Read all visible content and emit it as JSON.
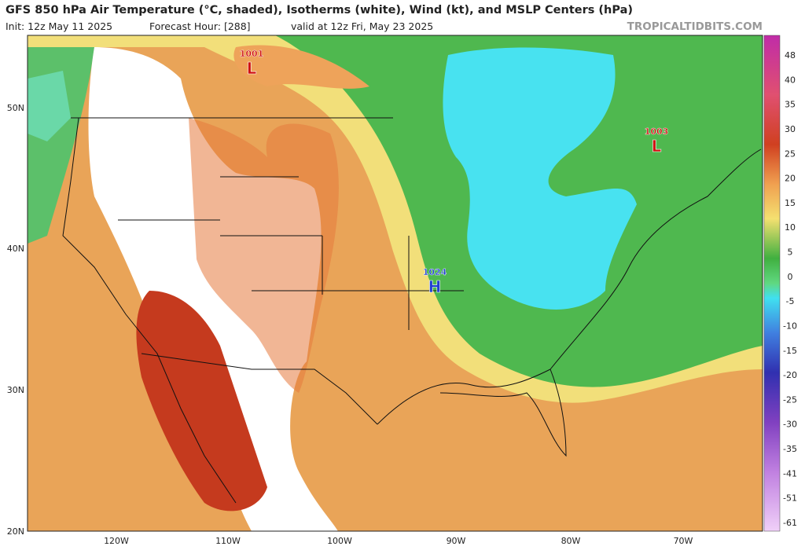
{
  "header": {
    "title": "GFS 850 hPa Air Temperature (°C, shaded), Isotherms (white), Wind (kt), and MSLP Centers (hPa)",
    "init": "Init: 12z May 11 2025",
    "forecast_hour": "Forecast Hour: [288]",
    "valid": "valid at 12z Fri, May 23 2025",
    "watermark": "TROPICALTIDBITS.COM"
  },
  "pressure_centers": [
    {
      "value": "1001",
      "symbol": "L"
    },
    {
      "value": "1003",
      "symbol": "L"
    },
    {
      "value": "1024",
      "symbol": "H"
    }
  ],
  "latitude_labels": [
    "50N",
    "40N",
    "30N",
    "20N"
  ],
  "longitude_labels": [
    "120W",
    "110W",
    "100W",
    "90W",
    "80W",
    "70W"
  ],
  "colorbar": {
    "labels": [
      48,
      40,
      35,
      30,
      25,
      20,
      15,
      10,
      5,
      0,
      -5,
      -10,
      -15,
      -20,
      -25,
      -30,
      -35,
      -41,
      -51,
      -61
    ]
  }
}
